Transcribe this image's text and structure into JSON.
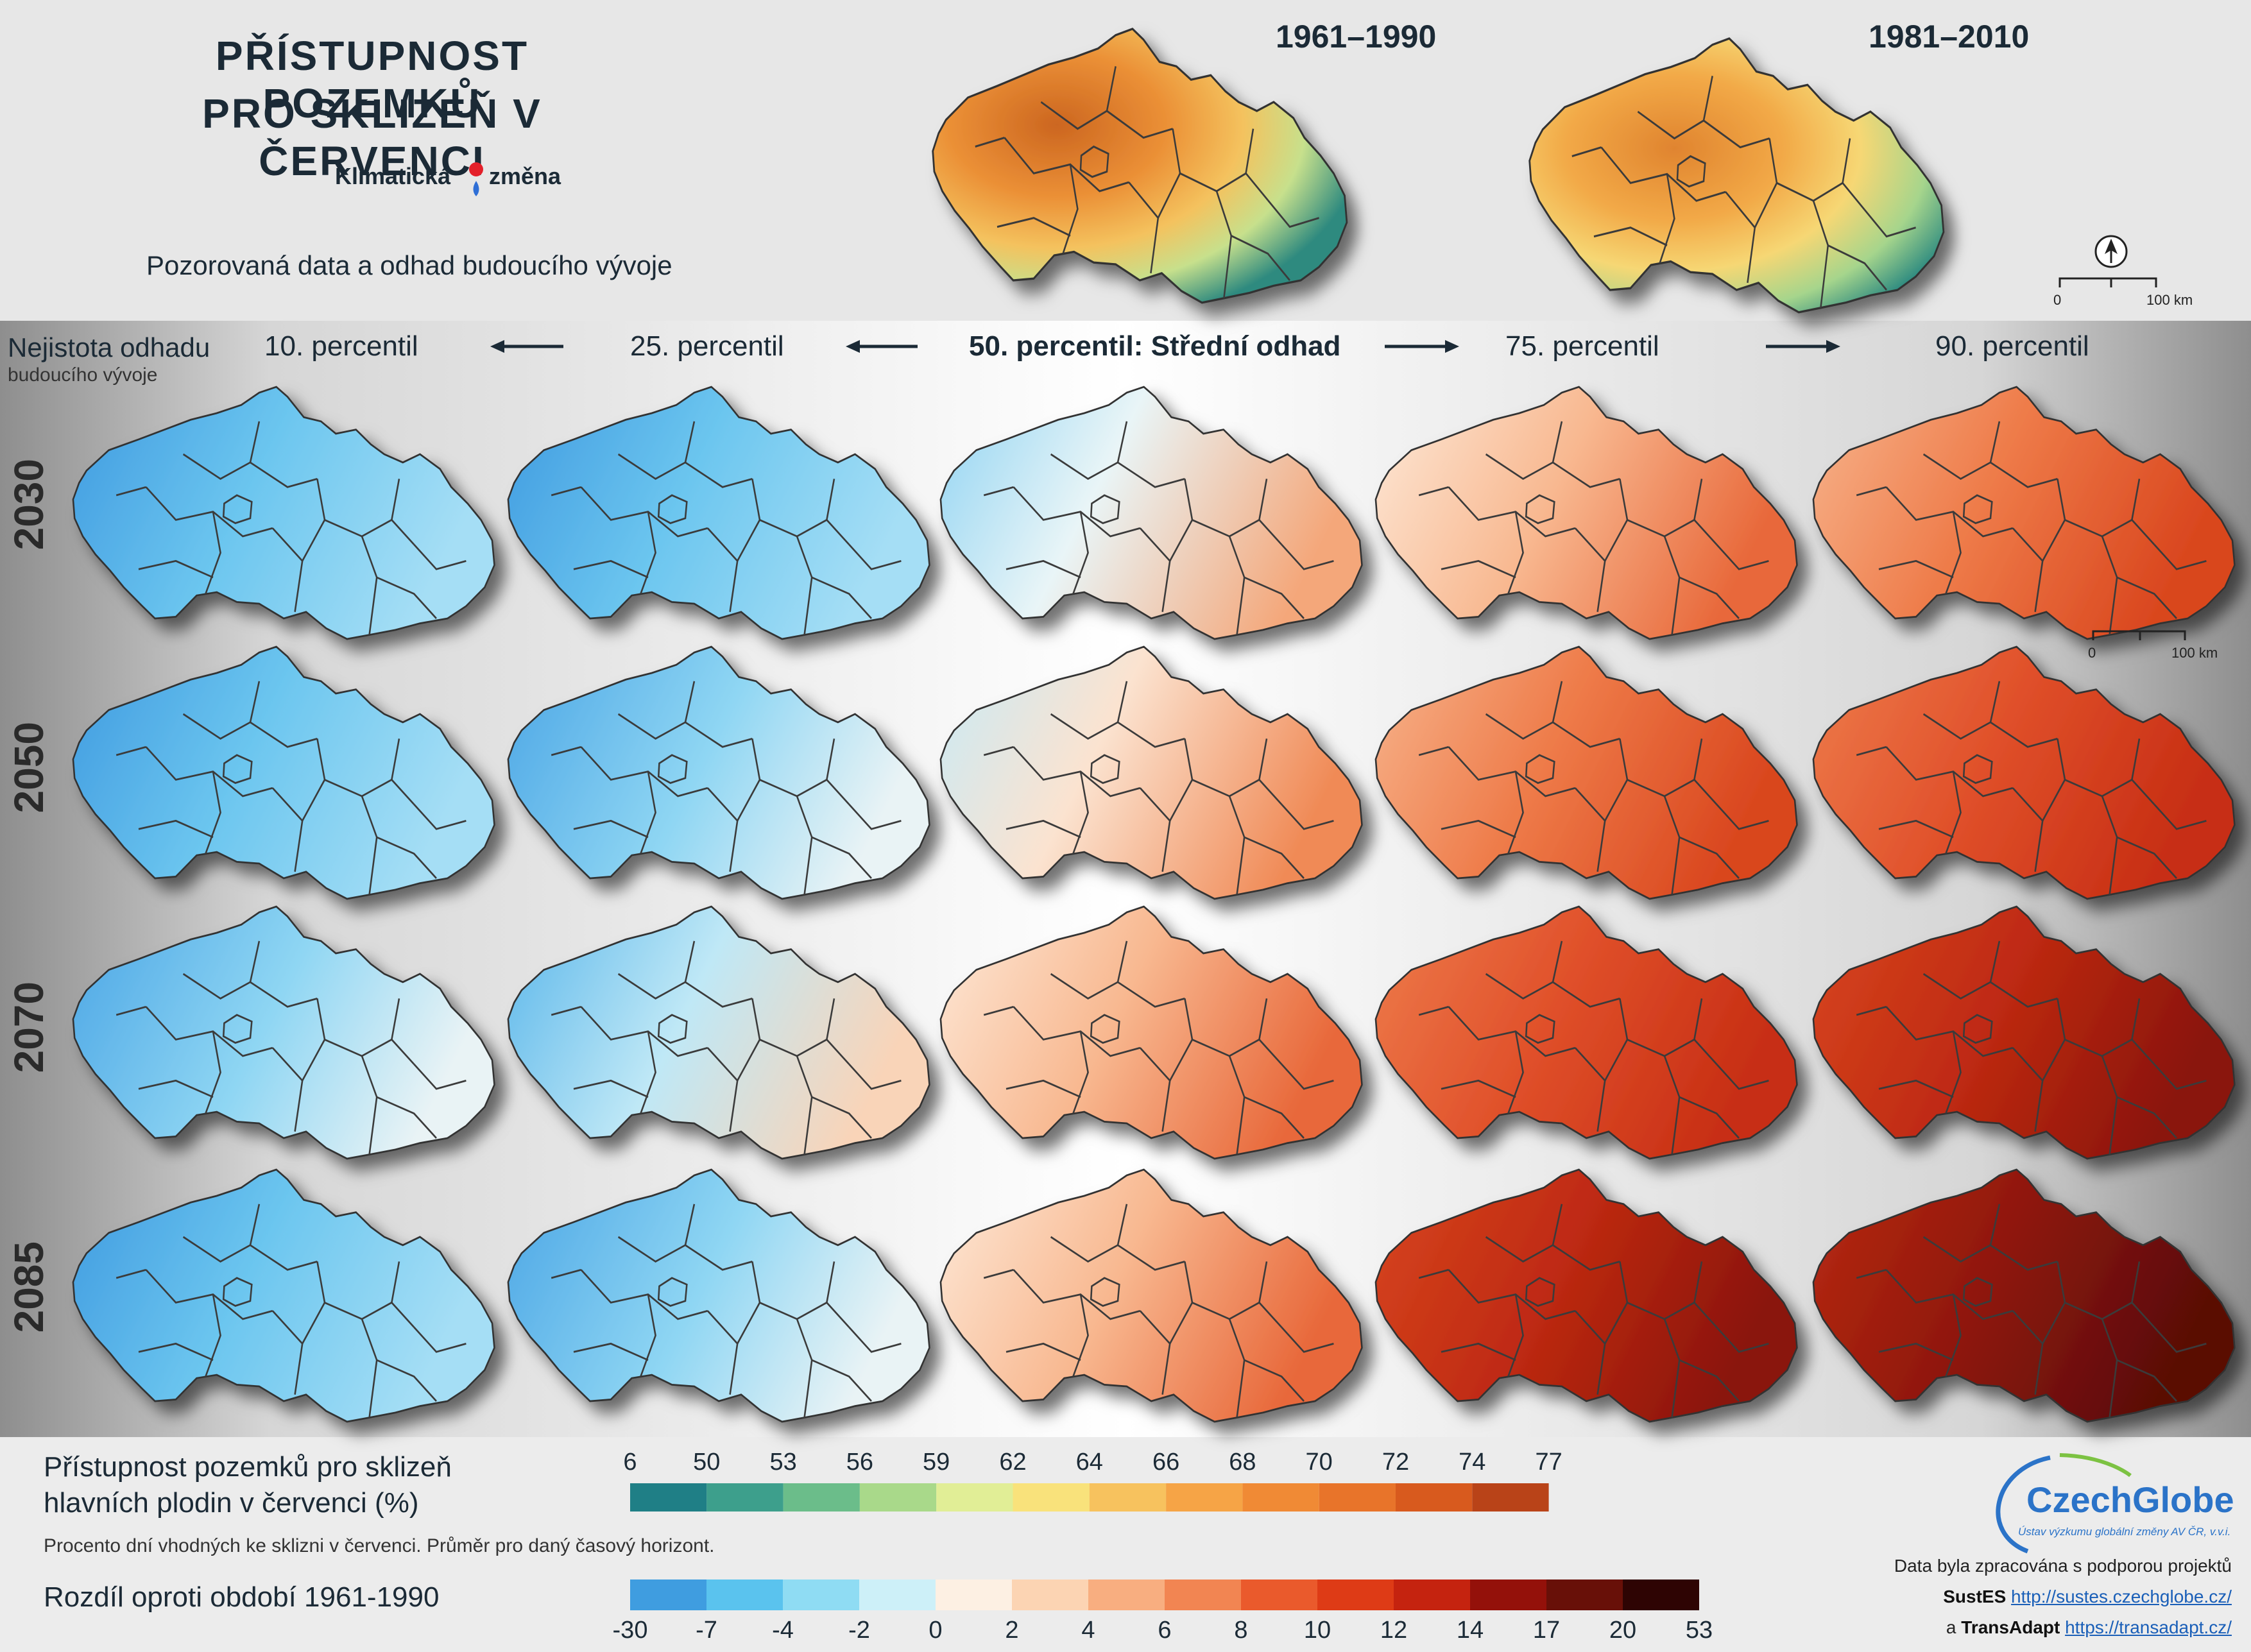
{
  "header": {
    "title_line1": "PŘÍSTUPNOST POZEMKŮ",
    "title_line2": "PRO SKLIZEŇ V ČERVENCI",
    "logo_left": "Klimatická",
    "logo_right": "změna",
    "subtitle": "Pozorovaná data a odhad budoucího vývoje",
    "period1": "1961–1990",
    "period2": "1981–2010",
    "scale_zero": "0",
    "scale_km": "100 km"
  },
  "grid": {
    "uncertainty_title": "Nejistota odhadu",
    "uncertainty_sub": "budoucího vývoje",
    "columns": [
      "10. percentil",
      "25. percentil",
      "50. percentil: Střední odhad",
      "75. percentil",
      "90. percentil"
    ],
    "years": [
      "2030",
      "2050",
      "2070",
      "2085"
    ],
    "scale_zero": "0",
    "scale_km": "100 km"
  },
  "legend": {
    "abs_title_line1": "Přístupnost pozemků pro sklizeň",
    "abs_title_line2": "hlavních plodin v červenci (%)",
    "abs_note": "Procento dní vhodných ke sklizni v červenci. Průměr pro daný časový horizont.",
    "abs_ticks": [
      "6",
      "50",
      "53",
      "56",
      "59",
      "62",
      "64",
      "66",
      "68",
      "70",
      "72",
      "74",
      "77"
    ],
    "abs_colors": [
      "#1f7f86",
      "#3d9f8c",
      "#6bbd8a",
      "#a9d98a",
      "#e1ee96",
      "#f9e27b",
      "#f7c25e",
      "#f6a446",
      "#f08a35",
      "#e8742a",
      "#d85a1e",
      "#b94318"
    ],
    "diff_title": "Rozdíl oproti období 1961-1990",
    "diff_ticks": [
      "-30",
      "-7",
      "-4",
      "-2",
      "0",
      "2",
      "4",
      "6",
      "8",
      "10",
      "12",
      "14",
      "17",
      "20",
      "53"
    ],
    "diff_colors": [
      "#3f9de0",
      "#5ac3ee",
      "#8fdcf3",
      "#cdf0f8",
      "#fdf0e3",
      "#fcd4b3",
      "#f8ae80",
      "#f28552",
      "#ea5a2c",
      "#de3b16",
      "#c5230f",
      "#94110a",
      "#681008",
      "#2e0403"
    ]
  },
  "credits": {
    "brand": "CzechGlobe",
    "brand_sub": "Ústav výzkumu globální změny AV ČR, v.v.i.",
    "line1": "Data byla zpracována s podporou projektů",
    "proj1": "SustES",
    "url1": "http://sustes.czechglobe.cz/",
    "conj": "a",
    "proj2": "TransAdapt",
    "url2": "https://transadapt.cz/"
  },
  "colors": {
    "obs1": [
      "#2d8a80",
      "#8cc98b",
      "#f2d76e",
      "#f0a33f",
      "#e07a2c",
      "#b9521a"
    ],
    "obs2": [
      "#2d8a80",
      "#8cc98b",
      "#f2d76e",
      "#f0a33f",
      "#e07a2c",
      "#c9661f"
    ]
  }
}
